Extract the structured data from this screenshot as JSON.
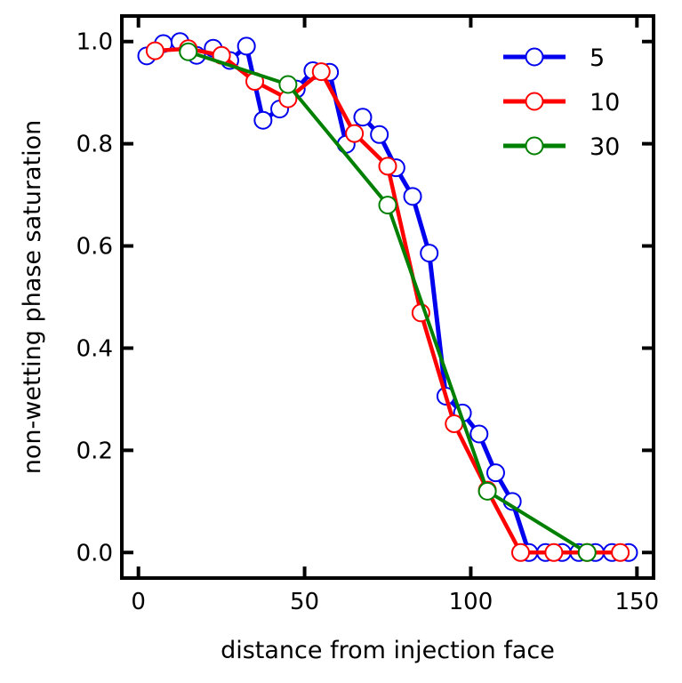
{
  "chart_data": {
    "type": "line",
    "xlabel": "distance from injection face",
    "ylabel": "non-wetting phase saturation",
    "xlim": [
      -5,
      155
    ],
    "ylim": [
      -0.05,
      1.05
    ],
    "xticks": [
      0,
      50,
      100,
      150
    ],
    "yticks": [
      0.0,
      0.2,
      0.4,
      0.6,
      0.8,
      1.0
    ],
    "xtick_labels": [
      "0",
      "50",
      "100",
      "150"
    ],
    "ytick_labels": [
      "0.0",
      "0.2",
      "0.4",
      "0.6",
      "0.8",
      "1.0"
    ],
    "grid": false,
    "legend_position": "top-right",
    "series": [
      {
        "name": "5",
        "color": "#0000ee",
        "x": [
          2.5,
          7.5,
          12.5,
          17.5,
          22.5,
          27.5,
          32.5,
          37.5,
          42.5,
          47.5,
          52.5,
          57.5,
          62.5,
          67.5,
          72.5,
          77.5,
          82.5,
          87.5,
          92.5,
          97.5,
          102.5,
          107.5,
          112.5,
          117.5,
          122.5,
          127.5,
          132.5,
          137.5,
          142.5,
          147.5
        ],
        "y": [
          0.972,
          0.996,
          1.0,
          0.973,
          0.987,
          0.963,
          0.991,
          0.846,
          0.868,
          0.907,
          0.943,
          0.94,
          0.799,
          0.852,
          0.818,
          0.753,
          0.697,
          0.586,
          0.306,
          0.273,
          0.232,
          0.156,
          0.1,
          0.0,
          0.0,
          0.0,
          0.0,
          0.0,
          0.0,
          0.0
        ]
      },
      {
        "name": "10",
        "color": "#ff0000",
        "x": [
          5,
          15,
          25,
          35,
          45,
          55,
          65,
          75,
          85,
          95,
          105,
          115,
          125,
          135,
          145
        ],
        "y": [
          0.982,
          0.986,
          0.973,
          0.922,
          0.888,
          0.941,
          0.82,
          0.756,
          0.469,
          0.252,
          0.122,
          0.0,
          0.0,
          0.0,
          0.0
        ]
      },
      {
        "name": "30",
        "color": "#008000",
        "x": [
          15,
          45,
          75,
          105,
          135
        ],
        "y": [
          0.98,
          0.916,
          0.68,
          0.12,
          0.0
        ]
      }
    ]
  }
}
